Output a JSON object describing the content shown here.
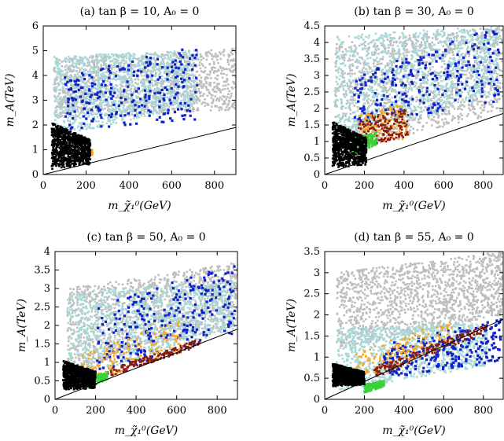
{
  "chart_data": [
    {
      "type": "scatter",
      "title": "(a) tan β = 10, A₀ = 0",
      "xlabel": "m_χ̃₁⁰(GeV)",
      "ylabel": "m_A(TeV)",
      "xlim": [
        0,
        900
      ],
      "ylim": [
        0,
        6
      ],
      "xticks": [
        "0",
        "200",
        "400",
        "600",
        "800"
      ],
      "yticks": [
        "0",
        "1",
        "2",
        "3",
        "4",
        "5",
        "6"
      ],
      "reference_line": {
        "x": [
          0,
          900
        ],
        "y": [
          0,
          1.9
        ]
      },
      "regions": [
        {
          "name": "grey",
          "color": "#bdbdbd",
          "x": [
            50,
            900
          ],
          "y_low_at": [
            2.3,
            2.6
          ],
          "y_high": [
            4.7,
            5.1
          ]
        },
        {
          "name": "lightblue",
          "color": "#a9d8d8",
          "x": [
            50,
            720
          ],
          "y_low_at": [
            1.5,
            2.8
          ],
          "y_high": [
            4.8,
            5.0
          ]
        },
        {
          "name": "blue",
          "color": "#1022c8",
          "x": [
            100,
            720
          ],
          "y_low_at": [
            1.8,
            2.2
          ],
          "y_high": [
            4.0,
            5.2
          ]
        },
        {
          "name": "orange",
          "color": "#f5a623",
          "x": [
            180,
            230
          ],
          "y_low_at": [
            0.7,
            0.8
          ],
          "y_high": [
            0.9,
            1.0
          ]
        },
        {
          "name": "black",
          "color": "#000000",
          "x": [
            40,
            220
          ],
          "y_low_at": [
            0.2,
            0.4
          ],
          "y_high": [
            2.1,
            1.4
          ]
        }
      ]
    },
    {
      "type": "scatter",
      "title": "(b) tan β = 30, A₀ = 0",
      "xlabel": "m_χ̃₁⁰(GeV)",
      "ylabel": "m_A(TeV)",
      "xlim": [
        0,
        900
      ],
      "ylim": [
        0,
        4.5
      ],
      "xticks": [
        "0",
        "200",
        "400",
        "600",
        "800"
      ],
      "yticks": [
        "0",
        "0.5",
        "1",
        "1.5",
        "2",
        "2.5",
        "3",
        "3.5",
        "4",
        "4.5"
      ],
      "reference_line": {
        "x": [
          0,
          900
        ],
        "y": [
          0,
          1.85
        ]
      },
      "regions": [
        {
          "name": "grey",
          "color": "#bdbdbd",
          "x": [
            50,
            900
          ],
          "y_low_at": [
            0.6,
            1.9
          ],
          "y_high": [
            4.0,
            4.5
          ]
        },
        {
          "name": "lightblue",
          "color": "#a9d8d8",
          "x": [
            50,
            880
          ],
          "y_low_at": [
            0.9,
            2.4
          ],
          "y_high": [
            4.2,
            4.5
          ]
        },
        {
          "name": "blue",
          "color": "#1022c8",
          "x": [
            150,
            880
          ],
          "y_low_at": [
            1.5,
            2.2
          ],
          "y_high": [
            3.0,
            4.5
          ]
        },
        {
          "name": "orange",
          "color": "#f5a623",
          "x": [
            170,
            420
          ],
          "y_low_at": [
            0.8,
            1.1
          ],
          "y_high": [
            1.8,
            2.2
          ]
        },
        {
          "name": "darkred",
          "color": "#8b1a0a",
          "x": [
            170,
            420
          ],
          "y_low_at": [
            0.8,
            1.1
          ],
          "y_high": [
            1.6,
            2.0
          ]
        },
        {
          "name": "green",
          "color": "#3ad23a",
          "x": [
            140,
            260
          ],
          "y_low_at": [
            0.6,
            0.9
          ],
          "y_high": [
            1.1,
            1.3
          ]
        },
        {
          "name": "black",
          "color": "#000000",
          "x": [
            40,
            210
          ],
          "y_low_at": [
            0.2,
            0.3
          ],
          "y_high": [
            1.6,
            1.1
          ]
        }
      ]
    },
    {
      "type": "scatter",
      "title": "(c) tan β = 50, A₀ = 0",
      "xlabel": "m_χ̃₁⁰(GeV)",
      "ylabel": "m_A(TeV)",
      "xlim": [
        0,
        900
      ],
      "ylim": [
        0,
        4
      ],
      "xticks": [
        "0",
        "200",
        "400",
        "600",
        "800"
      ],
      "yticks": [
        "0",
        "0.5",
        "1",
        "1.5",
        "2",
        "2.5",
        "3",
        "3.5",
        "4"
      ],
      "reference_line": {
        "x": [
          0,
          900
        ],
        "y": [
          0,
          1.9
        ]
      },
      "regions": [
        {
          "name": "grey",
          "color": "#bdbdbd",
          "x": [
            60,
            900
          ],
          "y_low_at": [
            0.8,
            2.0
          ],
          "y_high": [
            3.0,
            3.7
          ]
        },
        {
          "name": "lightblue",
          "color": "#a9d8d8",
          "x": [
            60,
            880
          ],
          "y_low_at": [
            0.5,
            1.9
          ],
          "y_high": [
            2.9,
            3.2
          ]
        },
        {
          "name": "blue",
          "color": "#1022c8",
          "x": [
            200,
            890
          ],
          "y_low_at": [
            0.6,
            1.8
          ],
          "y_high": [
            2.5,
            3.7
          ]
        },
        {
          "name": "orange",
          "color": "#f5a623",
          "x": [
            130,
            620
          ],
          "y_low_at": [
            0.35,
            1.3
          ],
          "y_high": [
            1.2,
            2.2
          ]
        },
        {
          "name": "darkred",
          "color": "#8b1a0a",
          "x": [
            260,
            720
          ],
          "y_low_at": [
            0.6,
            1.45
          ],
          "y_high": [
            0.8,
            1.65
          ]
        },
        {
          "name": "green",
          "color": "#3ad23a",
          "x": [
            160,
            260
          ],
          "y_low_at": [
            0.3,
            0.55
          ],
          "y_high": [
            0.6,
            0.75
          ]
        },
        {
          "name": "black",
          "color": "#000000",
          "x": [
            40,
            200
          ],
          "y_low_at": [
            0.25,
            0.3
          ],
          "y_high": [
            1.05,
            0.75
          ]
        }
      ]
    },
    {
      "type": "scatter",
      "title": "(d) tan β = 55, A₀ = 0",
      "xlabel": "m_χ̃₁⁰(GeV)",
      "ylabel": "m_A(TeV)",
      "xlim": [
        0,
        900
      ],
      "ylim": [
        0,
        3.5
      ],
      "xticks": [
        "0",
        "200",
        "400",
        "600",
        "800"
      ],
      "yticks": [
        "0",
        "0.5",
        "1",
        "1.5",
        "2",
        "2.5",
        "3",
        "3.5"
      ],
      "reference_line": {
        "x": [
          0,
          900
        ],
        "y": [
          0,
          1.9
        ]
      },
      "regions": [
        {
          "name": "grey",
          "color": "#bdbdbd",
          "x": [
            60,
            900
          ],
          "y_low_at": [
            1.2,
            2.0
          ],
          "y_high": [
            3.0,
            3.5
          ]
        },
        {
          "name": "lightblue",
          "color": "#a9d8d8",
          "x": [
            60,
            820
          ],
          "y_low_at": [
            0.2,
            0.8
          ],
          "y_high": [
            1.7,
            1.8
          ]
        },
        {
          "name": "blue",
          "color": "#1022c8",
          "x": [
            300,
            890
          ],
          "y_low_at": [
            0.5,
            0.9
          ],
          "y_high": [
            1.3,
            1.9
          ]
        },
        {
          "name": "orange",
          "color": "#f5a623",
          "x": [
            150,
            640
          ],
          "y_low_at": [
            0.3,
            1.3
          ],
          "y_high": [
            1.1,
            1.9
          ]
        },
        {
          "name": "darkred",
          "color": "#8b1a0a",
          "x": [
            240,
            820
          ],
          "y_low_at": [
            0.5,
            1.6
          ],
          "y_high": [
            0.75,
            1.8
          ]
        },
        {
          "name": "green",
          "color": "#3ad23a",
          "x": [
            200,
            300
          ],
          "y_low_at": [
            0.15,
            0.3
          ],
          "y_high": [
            0.35,
            0.45
          ]
        },
        {
          "name": "black",
          "color": "#000000",
          "x": [
            40,
            200
          ],
          "y_low_at": [
            0.3,
            0.35
          ],
          "y_high": [
            0.85,
            0.65
          ]
        }
      ]
    }
  ]
}
